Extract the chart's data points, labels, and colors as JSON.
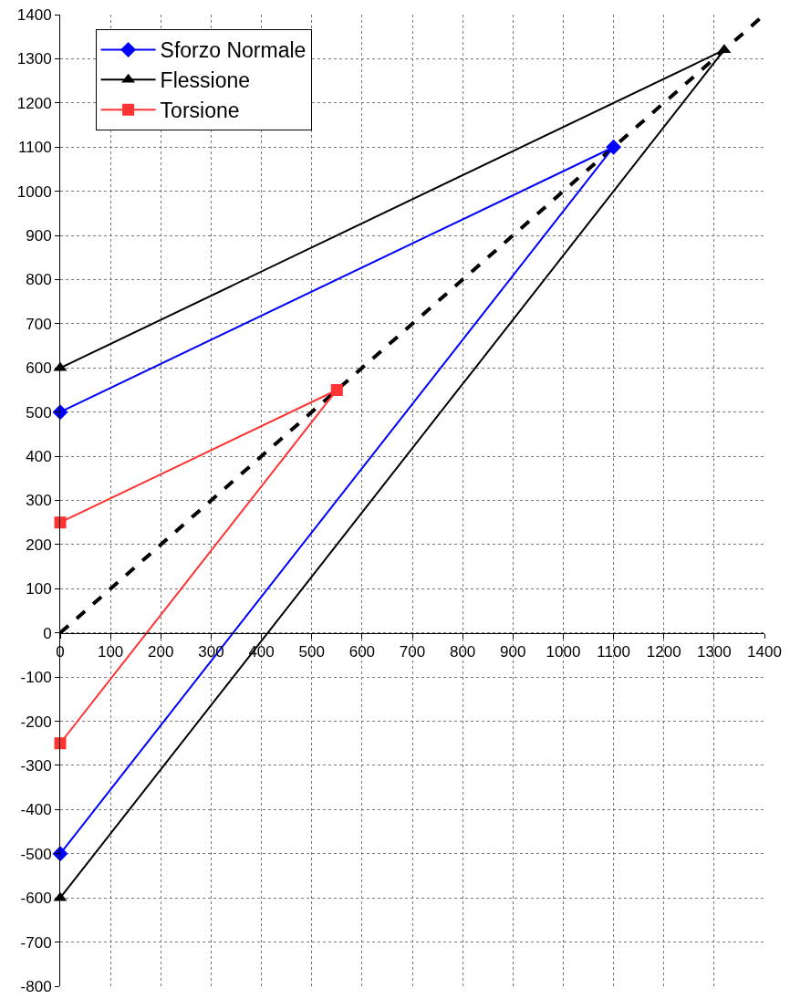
{
  "chart_data": {
    "type": "line",
    "xlim": [
      0,
      1400
    ],
    "ylim": [
      -800,
      1400
    ],
    "xticks": [
      0,
      100,
      200,
      300,
      400,
      500,
      600,
      700,
      800,
      900,
      1000,
      1100,
      1200,
      1300,
      1400
    ],
    "yticks": [
      -800,
      -700,
      -600,
      -500,
      -400,
      -300,
      -200,
      -100,
      0,
      100,
      200,
      300,
      400,
      500,
      600,
      700,
      800,
      900,
      1000,
      1100,
      1200,
      1300,
      1400
    ],
    "grid": true,
    "legend": "top left",
    "series": [
      {
        "name": "Sforzo Normale",
        "color": "#0000ff",
        "marker": "diamond",
        "x": [
          0,
          1100,
          0
        ],
        "values": [
          500,
          1100,
          -500
        ]
      },
      {
        "name": "Flessione",
        "color": "#000000",
        "marker": "triangle",
        "x": [
          0,
          1320,
          0
        ],
        "values": [
          600,
          1320,
          -600
        ]
      },
      {
        "name": "Torsione",
        "color": "#ff3333",
        "marker": "square",
        "x": [
          0,
          550,
          0
        ],
        "values": [
          250,
          550,
          -250
        ]
      },
      {
        "color": "#000000",
        "marker": "none",
        "line_style": "dashed",
        "x": [
          0,
          1400
        ],
        "values": [
          0,
          1400
        ]
      }
    ]
  }
}
